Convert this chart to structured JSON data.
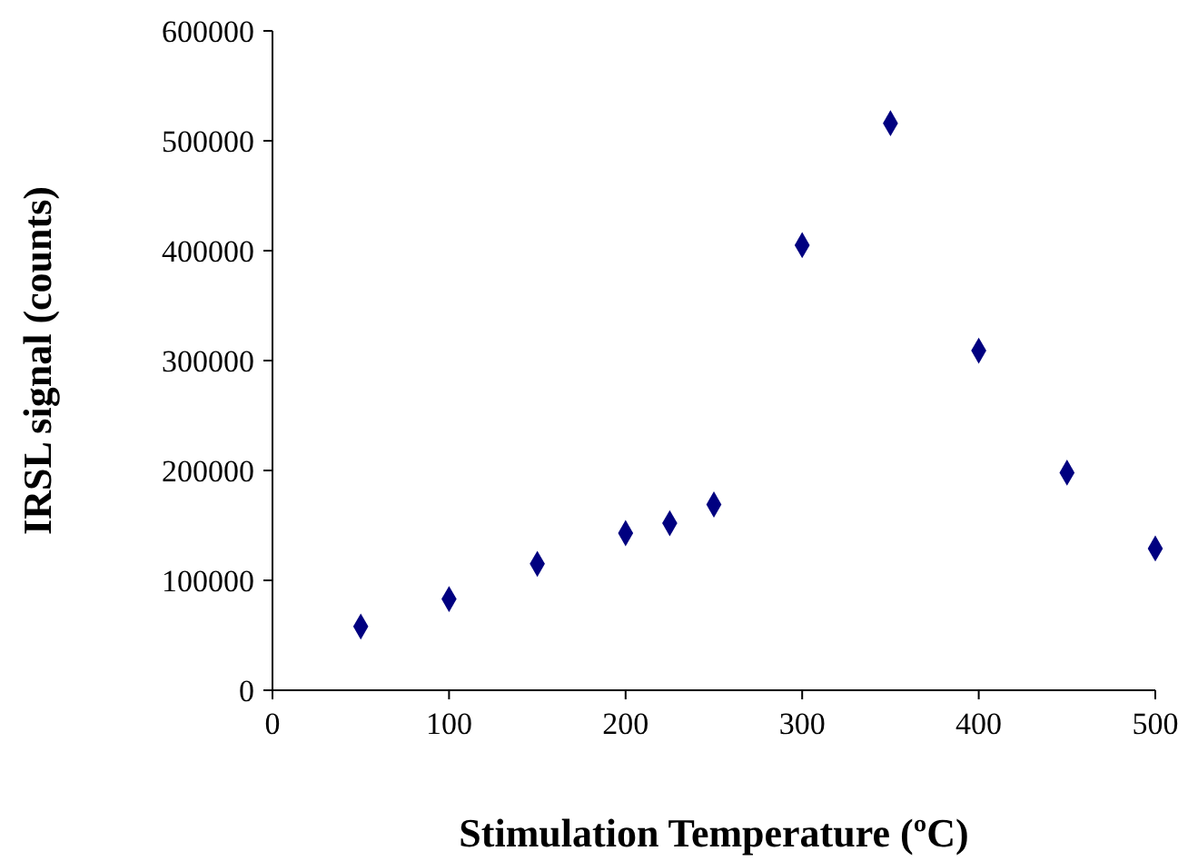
{
  "chart_data": {
    "type": "scatter",
    "xlabel": "Stimulation Temperature (ºC)",
    "ylabel": "IRSL signal (counts)",
    "x": [
      50,
      100,
      150,
      200,
      225,
      250,
      300,
      350,
      400,
      450,
      500
    ],
    "series": [
      {
        "color": "#000080",
        "values": [
          58000,
          83000,
          115000,
          143000,
          152000,
          169000,
          405000,
          516000,
          309000,
          198000,
          129000
        ]
      }
    ],
    "xlim": [
      0,
      500
    ],
    "xticks": [
      0,
      100,
      200,
      300,
      400,
      500
    ],
    "ylim": [
      0,
      600000
    ],
    "yticks": [
      0,
      100000,
      200000,
      300000,
      400000,
      500000,
      600000
    ],
    "marker": "diamond",
    "grid": false
  }
}
